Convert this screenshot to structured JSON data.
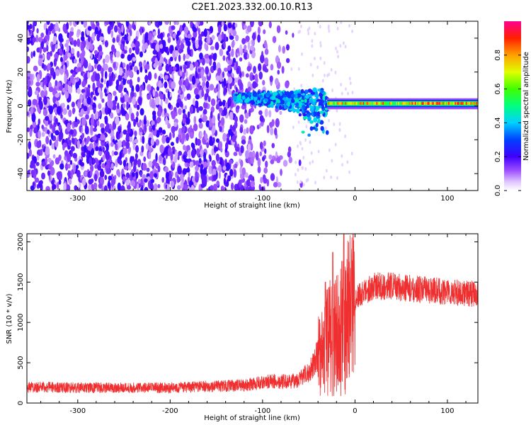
{
  "title": "C2E1.2023.332.00.10.R13",
  "chart_data": [
    {
      "type": "heatmap",
      "xlabel": "Height of straight line (km)",
      "ylabel": "Frequency (Hz)",
      "xlim": [
        -355,
        133
      ],
      "ylim": [
        -50,
        50
      ],
      "xticks": [
        -300,
        -200,
        -100,
        0,
        100
      ],
      "yticks": [
        -40,
        -20,
        0,
        20,
        40
      ],
      "colorbar": {
        "label": "Normalized spectral amplitude",
        "range": [
          0,
          1
        ],
        "ticks": [
          "0.0",
          "0.2",
          "0.4",
          "0.6",
          "0.8"
        ],
        "colors": [
          "#ffffff",
          "#d8b4ff",
          "#8a2be2",
          "#3b00ff",
          "#0050ff",
          "#00c8ff",
          "#00ff60",
          "#c8ff00",
          "#ffd000",
          "#ff4000",
          "#ff0080"
        ]
      },
      "features": [
        {
          "description": "broadband noise x<-60",
          "x_range": [
            -355,
            -60
          ],
          "freq_range": [
            -50,
            50
          ],
          "amplitude": 0.15
        },
        {
          "description": "converging carrier",
          "x_range": [
            -130,
            -30
          ],
          "freq_range": [
            -20,
            8
          ],
          "amplitude": 0.45
        },
        {
          "description": "locked carrier",
          "x_range": [
            -30,
            133
          ],
          "freq": 1.5,
          "amplitude": 0.85
        }
      ]
    },
    {
      "type": "line",
      "xlabel": "Height of straight line (km)",
      "ylabel": "SNR (10 * v/v)",
      "xlim": [
        -355,
        133
      ],
      "ylim": [
        0,
        2100
      ],
      "xticks": [
        -300,
        -200,
        -100,
        0,
        100
      ],
      "yticks": [
        0,
        500,
        1000,
        1500,
        2000
      ],
      "series_color": "#f03030",
      "envelope": {
        "x": [
          -355,
          -300,
          -200,
          -120,
          -90,
          -70,
          -60,
          -50,
          -40,
          -30,
          -20,
          -15,
          -10,
          0,
          20,
          40,
          60,
          80,
          100,
          133
        ],
        "y": [
          200,
          190,
          190,
          220,
          270,
          260,
          300,
          380,
          600,
          850,
          950,
          1000,
          1150,
          1300,
          1450,
          1450,
          1420,
          1400,
          1380,
          1350
        ]
      },
      "peaks": [
        {
          "x": -12,
          "y": 2100
        },
        {
          "x": -24,
          "y": 1870
        },
        {
          "x": -32,
          "y": 1500
        }
      ]
    }
  ]
}
